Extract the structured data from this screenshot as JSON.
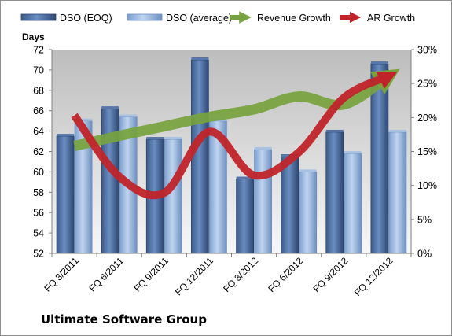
{
  "chart_data": {
    "type": "bar",
    "title": "Ultimate Software Group",
    "ylabel": "Days",
    "categories": [
      "FQ 3/2011",
      "FQ 6/2011",
      "FQ 9/2011",
      "FQ 12/2011",
      "FQ 3/2012",
      "FQ 6/2012",
      "FQ 9/2012",
      "FQ 12/2012"
    ],
    "ylim": [
      52,
      72
    ],
    "y_ticks": [
      "52",
      "54",
      "56",
      "58",
      "60",
      "62",
      "64",
      "66",
      "68",
      "70",
      "72"
    ],
    "y2lim": [
      0,
      30
    ],
    "y2_ticks": [
      "0%",
      "5%",
      "10%",
      "15%",
      "20%",
      "25%",
      "30%"
    ],
    "series": [
      {
        "name": "DSO (EOQ)",
        "type": "bar",
        "axis": "left",
        "color": "#4a6fa5",
        "values": [
          63.5,
          66.2,
          63.2,
          71.0,
          59.3,
          61.5,
          63.9,
          70.6
        ]
      },
      {
        "name": "DSO (average)",
        "type": "bar",
        "axis": "left",
        "color": "#95b3d7",
        "values": [
          65.0,
          65.4,
          63.2,
          65.0,
          62.2,
          60.0,
          61.8,
          63.9
        ]
      },
      {
        "name": "Revenue Growth",
        "type": "line",
        "axis": "right",
        "color": "#77a33e",
        "values": [
          15.8,
          17.3,
          18.7,
          20.1,
          21.2,
          23.1,
          21.9,
          26.1
        ]
      },
      {
        "name": "AR Growth",
        "type": "line",
        "axis": "right",
        "color": "#c0242a",
        "values": [
          20.3,
          11.3,
          8.9,
          17.9,
          11.5,
          14.9,
          22.9,
          26.1
        ]
      }
    ],
    "grid": false,
    "legend": "top"
  }
}
